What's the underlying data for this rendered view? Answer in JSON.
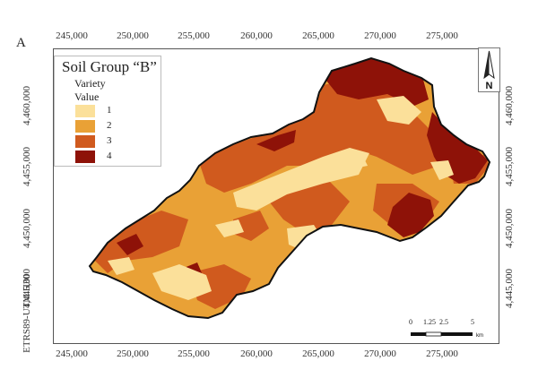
{
  "panel_label": "A",
  "legend": {
    "title": "Soil Group “B”",
    "subtitle1": "Variety",
    "subtitle2": "Value",
    "classes": [
      {
        "label": "1",
        "color": "#fbe09a"
      },
      {
        "label": "2",
        "color": "#e9a136"
      },
      {
        "label": "3",
        "color": "#d05a1e"
      },
      {
        "label": "4",
        "color": "#8e1208"
      }
    ]
  },
  "x_ticks": [
    "245,000",
    "250,000",
    "255,000",
    "260,000",
    "265,000",
    "270,000",
    "275,000"
  ],
  "y_ticks": [
    "4,460,000",
    "4,455,000",
    "4,450,000",
    "4,445,000"
  ],
  "crs_label": "ETRS89-UTM H30",
  "north_label": "N",
  "scale": {
    "labels": [
      "0",
      "1.25",
      "2.5",
      "5"
    ],
    "unit": "km"
  },
  "colors": {
    "boundary": "#111111",
    "frame": "#555555"
  }
}
